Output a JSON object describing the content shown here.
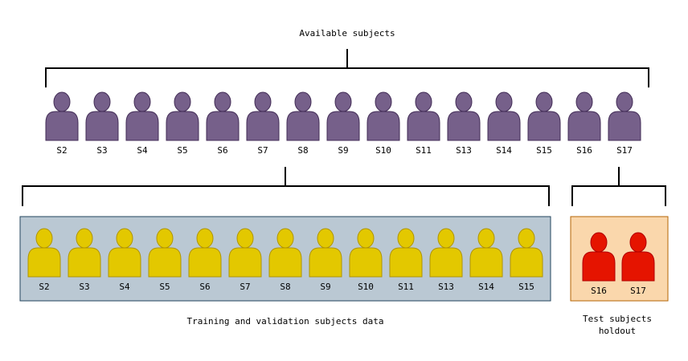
{
  "available": {
    "title": "Available subjects",
    "subjects": [
      "S2",
      "S3",
      "S4",
      "S5",
      "S6",
      "S7",
      "S8",
      "S9",
      "S10",
      "S11",
      "S13",
      "S14",
      "S15",
      "S16",
      "S17"
    ],
    "color": "#76608a",
    "stroke": "#432d57"
  },
  "training": {
    "caption": "Training and validation subjects data",
    "subjects": [
      "S2",
      "S3",
      "S4",
      "S5",
      "S6",
      "S7",
      "S8",
      "S9",
      "S10",
      "S11",
      "S13",
      "S14",
      "S15"
    ],
    "color": "#e3c800",
    "stroke": "#b09500",
    "panel_fill": "#bac8d3",
    "panel_stroke": "#23445d"
  },
  "test": {
    "caption_line1": "Test subjects",
    "caption_line2": "holdout",
    "subjects": [
      "S16",
      "S17"
    ],
    "color": "#e51400",
    "stroke": "#b20000",
    "panel_fill": "#fad7ac",
    "panel_stroke": "#b46504"
  }
}
